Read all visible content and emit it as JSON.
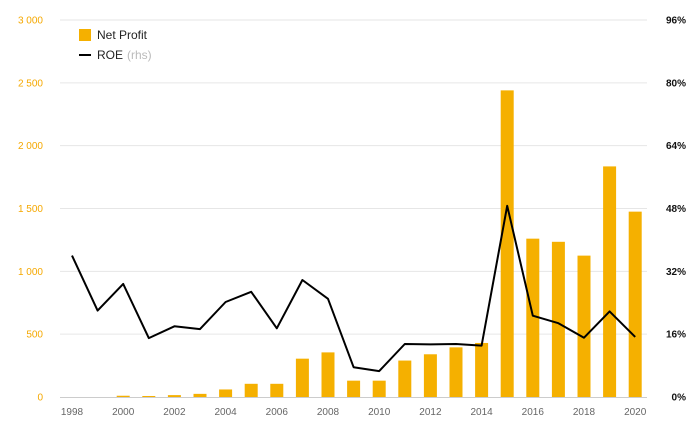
{
  "chart_data": {
    "type": "bar",
    "x": [
      1998,
      1999,
      2000,
      2001,
      2002,
      2003,
      2004,
      2005,
      2006,
      2007,
      2008,
      2009,
      2010,
      2011,
      2012,
      2013,
      2014,
      2015,
      2016,
      2017,
      2018,
      2019,
      2020
    ],
    "x_tick_labels": [
      "1998",
      "2000",
      "2002",
      "2004",
      "2006",
      "2008",
      "2010",
      "2012",
      "2014",
      "2016",
      "2018",
      "2020"
    ],
    "left_axis": {
      "ylim": [
        0,
        3000
      ],
      "tick_labels": [
        "0",
        "500",
        "1 000",
        "1 500",
        "2 000",
        "2 500",
        "3 000"
      ],
      "color": "#f5a800"
    },
    "right_axis": {
      "ylim": [
        0,
        96
      ],
      "tick_labels": [
        "0%",
        "16%",
        "32%",
        "48%",
        "64%",
        "80%",
        "96%"
      ],
      "color": "#111111"
    },
    "series": [
      {
        "name": "Net Profit",
        "kind": "bar",
        "axis": "left",
        "color": "#f5b000",
        "values": [
          0,
          0,
          10,
          8,
          15,
          25,
          60,
          105,
          105,
          305,
          355,
          130,
          130,
          290,
          340,
          395,
          430,
          2440,
          1260,
          1235,
          1125,
          1835,
          1475
        ]
      },
      {
        "name": "ROE",
        "name_suffix": "(rhs)",
        "kind": "line",
        "axis": "right",
        "color": "#000000",
        "values": [
          36,
          22,
          28.8,
          15,
          18,
          17.3,
          24.2,
          26.8,
          17.5,
          29.8,
          25,
          7.6,
          6.6,
          13.5,
          13.4,
          13.5,
          13.1,
          48.7,
          20.7,
          18.8,
          15.1,
          21.8,
          15.3
        ]
      }
    ],
    "legend_position": "top-left",
    "grid": true
  }
}
